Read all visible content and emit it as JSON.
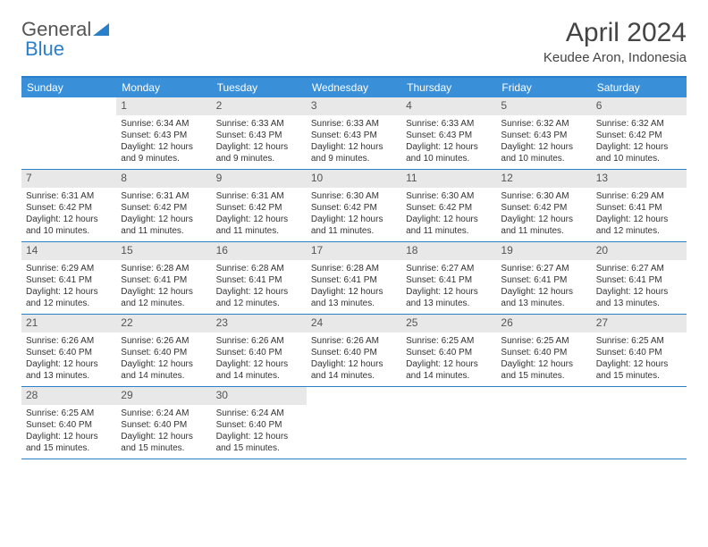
{
  "logo": {
    "text1": "General",
    "text2": "Blue"
  },
  "title": "April 2024",
  "location": "Keudee Aron, Indonesia",
  "colors": {
    "header_bg": "#3a8fc9",
    "accent": "#2a7fc9",
    "daynum_bg": "#e8e8e8",
    "text": "#333333"
  },
  "day_names": [
    "Sunday",
    "Monday",
    "Tuesday",
    "Wednesday",
    "Thursday",
    "Friday",
    "Saturday"
  ],
  "weeks": [
    [
      {
        "num": "",
        "sunrise": "",
        "sunset": "",
        "daylight": ""
      },
      {
        "num": "1",
        "sunrise": "Sunrise: 6:34 AM",
        "sunset": "Sunset: 6:43 PM",
        "daylight": "Daylight: 12 hours and 9 minutes."
      },
      {
        "num": "2",
        "sunrise": "Sunrise: 6:33 AM",
        "sunset": "Sunset: 6:43 PM",
        "daylight": "Daylight: 12 hours and 9 minutes."
      },
      {
        "num": "3",
        "sunrise": "Sunrise: 6:33 AM",
        "sunset": "Sunset: 6:43 PM",
        "daylight": "Daylight: 12 hours and 9 minutes."
      },
      {
        "num": "4",
        "sunrise": "Sunrise: 6:33 AM",
        "sunset": "Sunset: 6:43 PM",
        "daylight": "Daylight: 12 hours and 10 minutes."
      },
      {
        "num": "5",
        "sunrise": "Sunrise: 6:32 AM",
        "sunset": "Sunset: 6:43 PM",
        "daylight": "Daylight: 12 hours and 10 minutes."
      },
      {
        "num": "6",
        "sunrise": "Sunrise: 6:32 AM",
        "sunset": "Sunset: 6:42 PM",
        "daylight": "Daylight: 12 hours and 10 minutes."
      }
    ],
    [
      {
        "num": "7",
        "sunrise": "Sunrise: 6:31 AM",
        "sunset": "Sunset: 6:42 PM",
        "daylight": "Daylight: 12 hours and 10 minutes."
      },
      {
        "num": "8",
        "sunrise": "Sunrise: 6:31 AM",
        "sunset": "Sunset: 6:42 PM",
        "daylight": "Daylight: 12 hours and 11 minutes."
      },
      {
        "num": "9",
        "sunrise": "Sunrise: 6:31 AM",
        "sunset": "Sunset: 6:42 PM",
        "daylight": "Daylight: 12 hours and 11 minutes."
      },
      {
        "num": "10",
        "sunrise": "Sunrise: 6:30 AM",
        "sunset": "Sunset: 6:42 PM",
        "daylight": "Daylight: 12 hours and 11 minutes."
      },
      {
        "num": "11",
        "sunrise": "Sunrise: 6:30 AM",
        "sunset": "Sunset: 6:42 PM",
        "daylight": "Daylight: 12 hours and 11 minutes."
      },
      {
        "num": "12",
        "sunrise": "Sunrise: 6:30 AM",
        "sunset": "Sunset: 6:42 PM",
        "daylight": "Daylight: 12 hours and 11 minutes."
      },
      {
        "num": "13",
        "sunrise": "Sunrise: 6:29 AM",
        "sunset": "Sunset: 6:41 PM",
        "daylight": "Daylight: 12 hours and 12 minutes."
      }
    ],
    [
      {
        "num": "14",
        "sunrise": "Sunrise: 6:29 AM",
        "sunset": "Sunset: 6:41 PM",
        "daylight": "Daylight: 12 hours and 12 minutes."
      },
      {
        "num": "15",
        "sunrise": "Sunrise: 6:28 AM",
        "sunset": "Sunset: 6:41 PM",
        "daylight": "Daylight: 12 hours and 12 minutes."
      },
      {
        "num": "16",
        "sunrise": "Sunrise: 6:28 AM",
        "sunset": "Sunset: 6:41 PM",
        "daylight": "Daylight: 12 hours and 12 minutes."
      },
      {
        "num": "17",
        "sunrise": "Sunrise: 6:28 AM",
        "sunset": "Sunset: 6:41 PM",
        "daylight": "Daylight: 12 hours and 13 minutes."
      },
      {
        "num": "18",
        "sunrise": "Sunrise: 6:27 AM",
        "sunset": "Sunset: 6:41 PM",
        "daylight": "Daylight: 12 hours and 13 minutes."
      },
      {
        "num": "19",
        "sunrise": "Sunrise: 6:27 AM",
        "sunset": "Sunset: 6:41 PM",
        "daylight": "Daylight: 12 hours and 13 minutes."
      },
      {
        "num": "20",
        "sunrise": "Sunrise: 6:27 AM",
        "sunset": "Sunset: 6:41 PM",
        "daylight": "Daylight: 12 hours and 13 minutes."
      }
    ],
    [
      {
        "num": "21",
        "sunrise": "Sunrise: 6:26 AM",
        "sunset": "Sunset: 6:40 PM",
        "daylight": "Daylight: 12 hours and 13 minutes."
      },
      {
        "num": "22",
        "sunrise": "Sunrise: 6:26 AM",
        "sunset": "Sunset: 6:40 PM",
        "daylight": "Daylight: 12 hours and 14 minutes."
      },
      {
        "num": "23",
        "sunrise": "Sunrise: 6:26 AM",
        "sunset": "Sunset: 6:40 PM",
        "daylight": "Daylight: 12 hours and 14 minutes."
      },
      {
        "num": "24",
        "sunrise": "Sunrise: 6:26 AM",
        "sunset": "Sunset: 6:40 PM",
        "daylight": "Daylight: 12 hours and 14 minutes."
      },
      {
        "num": "25",
        "sunrise": "Sunrise: 6:25 AM",
        "sunset": "Sunset: 6:40 PM",
        "daylight": "Daylight: 12 hours and 14 minutes."
      },
      {
        "num": "26",
        "sunrise": "Sunrise: 6:25 AM",
        "sunset": "Sunset: 6:40 PM",
        "daylight": "Daylight: 12 hours and 15 minutes."
      },
      {
        "num": "27",
        "sunrise": "Sunrise: 6:25 AM",
        "sunset": "Sunset: 6:40 PM",
        "daylight": "Daylight: 12 hours and 15 minutes."
      }
    ],
    [
      {
        "num": "28",
        "sunrise": "Sunrise: 6:25 AM",
        "sunset": "Sunset: 6:40 PM",
        "daylight": "Daylight: 12 hours and 15 minutes."
      },
      {
        "num": "29",
        "sunrise": "Sunrise: 6:24 AM",
        "sunset": "Sunset: 6:40 PM",
        "daylight": "Daylight: 12 hours and 15 minutes."
      },
      {
        "num": "30",
        "sunrise": "Sunrise: 6:24 AM",
        "sunset": "Sunset: 6:40 PM",
        "daylight": "Daylight: 12 hours and 15 minutes."
      },
      {
        "num": "",
        "sunrise": "",
        "sunset": "",
        "daylight": ""
      },
      {
        "num": "",
        "sunrise": "",
        "sunset": "",
        "daylight": ""
      },
      {
        "num": "",
        "sunrise": "",
        "sunset": "",
        "daylight": ""
      },
      {
        "num": "",
        "sunrise": "",
        "sunset": "",
        "daylight": ""
      }
    ]
  ]
}
